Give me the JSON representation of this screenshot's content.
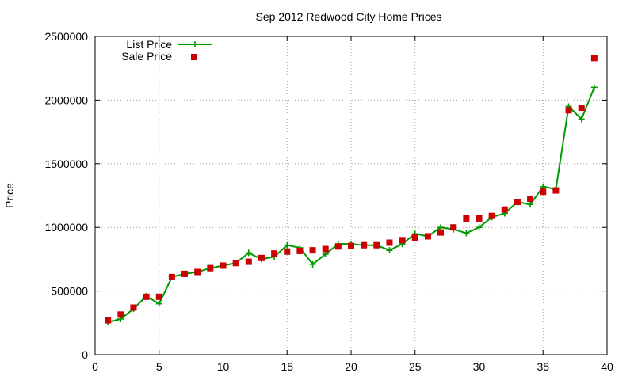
{
  "chart_data": {
    "type": "line",
    "title": "Sep 2012 Redwood City Home Prices",
    "xlabel": "",
    "ylabel": "Price",
    "xlim": [
      0,
      40
    ],
    "ylim": [
      0,
      2500000
    ],
    "x_ticks": [
      0,
      5,
      10,
      15,
      20,
      25,
      30,
      35,
      40
    ],
    "y_ticks": [
      0,
      500000,
      1000000,
      1500000,
      2000000,
      2500000
    ],
    "grid": true,
    "legend_position": "top-left",
    "x": [
      1,
      2,
      3,
      4,
      5,
      6,
      7,
      8,
      9,
      10,
      11,
      12,
      13,
      14,
      15,
      16,
      17,
      18,
      19,
      20,
      21,
      22,
      23,
      24,
      25,
      26,
      27,
      28,
      29,
      30,
      31,
      32,
      33,
      34,
      35,
      36,
      37,
      38,
      39
    ],
    "series": [
      {
        "name": "List Price",
        "style": "line-cross",
        "color": "#009900",
        "values": [
          255000,
          280000,
          360000,
          460000,
          400000,
          610000,
          635000,
          650000,
          680000,
          700000,
          720000,
          800000,
          750000,
          770000,
          860000,
          840000,
          710000,
          790000,
          870000,
          870000,
          860000,
          860000,
          820000,
          870000,
          950000,
          930000,
          1000000,
          985000,
          955000,
          1000000,
          1080000,
          1110000,
          1200000,
          1180000,
          1320000,
          1300000,
          1950000,
          1850000,
          2100000
        ]
      },
      {
        "name": "Sale Price",
        "style": "square",
        "color": "#cc0000",
        "values": [
          270000,
          315000,
          370000,
          455000,
          455000,
          610000,
          635000,
          650000,
          680000,
          700000,
          720000,
          730000,
          760000,
          795000,
          810000,
          815000,
          820000,
          830000,
          850000,
          855000,
          860000,
          860000,
          880000,
          900000,
          920000,
          930000,
          960000,
          1000000,
          1070000,
          1070000,
          1090000,
          1140000,
          1200000,
          1225000,
          1280000,
          1290000,
          1920000,
          1940000,
          2330000
        ]
      }
    ]
  }
}
